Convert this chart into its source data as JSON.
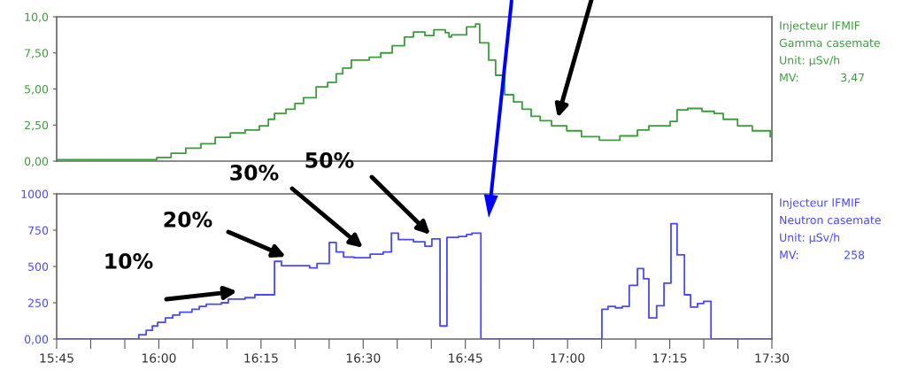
{
  "chart_data": [
    {
      "type": "step",
      "annotations": [
        "Injecteur IFMIF",
        "Gamma casemate",
        "Unit: µSv/h",
        "MV:",
        "3,47"
      ],
      "xlim": [
        15.75,
        17.5
      ],
      "ylim": [
        0,
        10
      ],
      "tick_labels": "y",
      "grid": false,
      "legend": false,
      "yticks": [
        {
          "value": 0,
          "label": "0,00"
        },
        {
          "value": 2.5,
          "label": "2,50"
        },
        {
          "value": 5,
          "label": "5,00"
        },
        {
          "value": 7.5,
          "label": "7,50"
        },
        {
          "value": 10,
          "label": "10,0"
        }
      ],
      "series": [
        {
          "color": "#3c9c3c",
          "x": [
            15.75,
            15.98,
            15.995,
            16.03,
            16.066,
            16.103,
            16.138,
            16.175,
            16.211,
            16.246,
            16.268,
            16.283,
            16.311,
            16.333,
            16.354,
            16.385,
            16.413,
            16.434,
            16.45,
            16.471,
            16.515,
            16.543,
            16.571,
            16.601,
            16.623,
            16.651,
            16.673,
            16.701,
            16.71,
            16.716,
            16.753,
            16.775,
            16.785,
            16.807,
            16.824,
            16.846,
            16.868,
            16.889,
            16.911,
            16.933,
            16.961,
            16.998,
            17.034,
            17.078,
            17.128,
            17.171,
            17.199,
            17.251,
            17.268,
            17.294,
            17.329,
            17.359,
            17.381,
            17.416,
            17.452,
            17.496
          ],
          "values": [
            0.1,
            0.1,
            0.25,
            0.55,
            0.9,
            1.2,
            1.65,
            1.95,
            2.15,
            2.45,
            2.9,
            3.3,
            3.6,
            4.0,
            4.4,
            5.15,
            5.45,
            6.05,
            6.45,
            7.0,
            7.2,
            7.5,
            8.0,
            8.6,
            8.95,
            8.7,
            9.1,
            8.9,
            8.6,
            8.75,
            9.3,
            9.5,
            8.2,
            7.0,
            5.95,
            4.6,
            4.1,
            3.6,
            3.1,
            2.8,
            2.45,
            2.1,
            1.7,
            1.45,
            1.75,
            2.15,
            2.45,
            2.75,
            3.55,
            3.65,
            3.45,
            3.3,
            2.9,
            2.45,
            2.1,
            1.7
          ]
        }
      ]
    },
    {
      "type": "step",
      "annotations": [
        "Injecteur IFMIF",
        "Neutron casemate",
        "Unit: µSv/h",
        "MV:",
        "258",
        "10%",
        "20%",
        "30%",
        "50%"
      ],
      "xlim": [
        15.75,
        17.5
      ],
      "ylim": [
        0,
        1000
      ],
      "grid": false,
      "legend": false,
      "yticks": [
        {
          "value": 0,
          "label": "0,00"
        },
        250,
        500,
        750,
        1000
      ],
      "xticks": [
        {
          "value": 15.75,
          "label": "15:45"
        },
        {
          "value": 15.8333,
          "label": null
        },
        {
          "value": 15.9167,
          "label": null
        },
        {
          "value": 16,
          "label": "16:00"
        },
        {
          "value": 16.0833,
          "label": null
        },
        {
          "value": 16.1667,
          "label": null
        },
        {
          "value": 16.25,
          "label": "16:15"
        },
        {
          "value": 16.3333,
          "label": null
        },
        {
          "value": 16.4167,
          "label": null
        },
        {
          "value": 16.5,
          "label": "16:30"
        },
        {
          "value": 16.5833,
          "label": null
        },
        {
          "value": 16.6667,
          "label": null
        },
        {
          "value": 16.75,
          "label": "16:45"
        },
        {
          "value": 16.8333,
          "label": null
        },
        {
          "value": 16.9167,
          "label": null
        },
        {
          "value": 17,
          "label": "17:00"
        },
        {
          "value": 17.0833,
          "label": null
        },
        {
          "value": 17.1667,
          "label": null
        },
        {
          "value": 17.25,
          "label": "17:15"
        },
        {
          "value": 17.3333,
          "label": null
        },
        {
          "value": 17.4167,
          "label": null
        },
        {
          "value": 17.5,
          "label": "17:30"
        }
      ],
      "series": [
        {
          "color": "#4848ff",
          "x": [
            15.75,
            15.947,
            15.951,
            15.969,
            15.984,
            15.997,
            16.016,
            16.034,
            16.051,
            16.081,
            16.099,
            16.116,
            16.153,
            16.17,
            16.211,
            16.235,
            16.283,
            16.3,
            16.369,
            16.387,
            16.417,
            16.434,
            16.452,
            16.478,
            16.517,
            16.549,
            16.569,
            16.586,
            16.623,
            16.651,
            16.668,
            16.688,
            16.705,
            16.733,
            16.753,
            16.766,
            16.788,
            17.084,
            17.099,
            17.117,
            17.134,
            17.151,
            17.171,
            17.186,
            17.199,
            17.218,
            17.236,
            17.253,
            17.268,
            17.286,
            17.301,
            17.318,
            17.333,
            17.351,
            17.5
          ],
          "values": [
            0,
            0,
            30,
            60,
            90,
            115,
            145,
            165,
            185,
            205,
            225,
            240,
            250,
            275,
            285,
            305,
            535,
            505,
            490,
            520,
            665,
            600,
            565,
            560,
            585,
            600,
            730,
            685,
            670,
            640,
            690,
            90,
            700,
            707,
            720,
            730,
            0,
            205,
            225,
            215,
            225,
            370,
            485,
            415,
            145,
            230,
            385,
            795,
            580,
            305,
            220,
            245,
            260,
            0,
            0
          ]
        }
      ]
    }
  ]
}
